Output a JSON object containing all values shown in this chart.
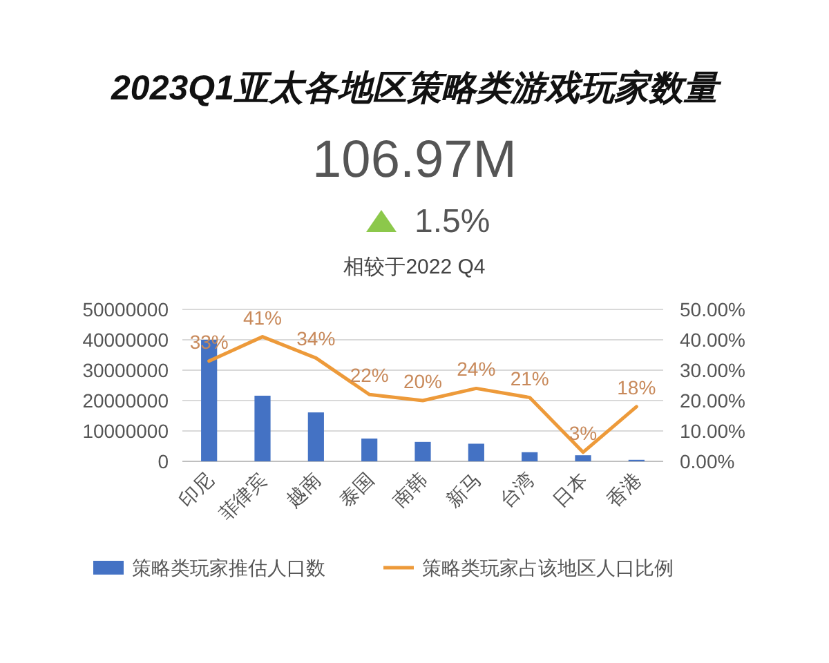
{
  "chart_data": {
    "type": "bar",
    "title": "2023Q1亚太各地区策略类游戏玩家数量",
    "subtitle": "106.97M",
    "annotations": [
      "1.5%",
      "相较于2022 Q4"
    ],
    "categories": [
      "印尼",
      "菲律宾",
      "越南",
      "泰国",
      "南韩",
      "新马",
      "台湾",
      "日本",
      "香港"
    ],
    "series": [
      {
        "name": "策略类玩家推估人口数",
        "color": "#4472c4",
        "values": [
          40000000,
          21600000,
          16100000,
          7500000,
          6400000,
          5800000,
          3000000,
          2000000,
          500000
        ]
      },
      {
        "name": "策略类玩家占该地区人口比例",
        "type": "line",
        "axis": "y2",
        "color": "#ed9a3a",
        "values": [
          33,
          41,
          34,
          22,
          20,
          24,
          21,
          3,
          18
        ],
        "value_labels": [
          "33%",
          "41%",
          "34%",
          "22%",
          "20%",
          "24%",
          "21%",
          "3%",
          "18%"
        ]
      }
    ],
    "ylim": [
      0,
      50000000
    ],
    "yticks": [
      0,
      10000000,
      20000000,
      30000000,
      40000000,
      50000000
    ],
    "y2lim": [
      0,
      50
    ],
    "y2ticks": [
      {
        "value": 0,
        "label": "0.00%"
      },
      {
        "value": 10,
        "label": "10.00%"
      },
      {
        "value": 20,
        "label": "20.00%"
      },
      {
        "value": 30,
        "label": "30.00%"
      },
      {
        "value": 40,
        "label": "40.00%"
      },
      {
        "value": 50,
        "label": "50.00%"
      }
    ],
    "grid": "y",
    "legend": "bottom"
  }
}
